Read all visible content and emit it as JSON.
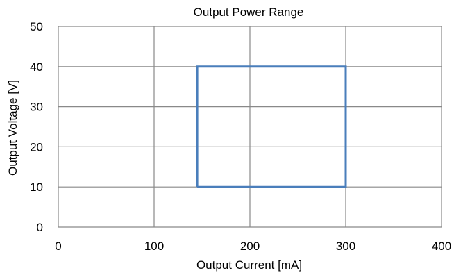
{
  "chart_data": {
    "type": "line",
    "title": "Output Power Range",
    "xlabel": "Output Current [mA]",
    "ylabel": "Output Voltage [V]",
    "xlim": [
      0,
      400
    ],
    "ylim": [
      0,
      50
    ],
    "xticks": [
      "0",
      "100",
      "200",
      "300",
      "400"
    ],
    "yticks": [
      "0",
      "10",
      "20",
      "30",
      "40",
      "50"
    ],
    "grid": true,
    "legend": "none",
    "series": [
      {
        "color": "#4a7ebb",
        "x": [
          145,
          300,
          300,
          145,
          145
        ],
        "y": [
          10,
          10,
          40,
          40,
          10
        ]
      }
    ]
  }
}
